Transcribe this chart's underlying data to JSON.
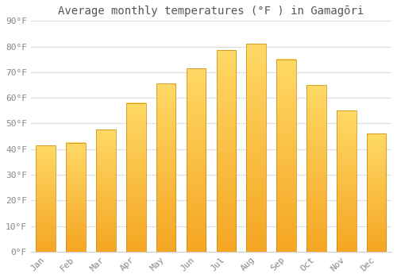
{
  "title": "Average monthly temperatures (°F ) in Gamagōri",
  "months": [
    "Jan",
    "Feb",
    "Mar",
    "Apr",
    "May",
    "Jun",
    "Jul",
    "Aug",
    "Sep",
    "Oct",
    "Nov",
    "Dec"
  ],
  "values": [
    41.5,
    42.5,
    47.5,
    58,
    65.5,
    71.5,
    78.5,
    81,
    75,
    65,
    55,
    46
  ],
  "bar_color_bottom": "#F5A623",
  "bar_color_top": "#FFD966",
  "bar_edge_color": "#C8860A",
  "background_color": "#ffffff",
  "grid_color": "#dddddd",
  "ylim": [
    0,
    90
  ],
  "yticks": [
    0,
    10,
    20,
    30,
    40,
    50,
    60,
    70,
    80,
    90
  ],
  "title_fontsize": 10,
  "tick_fontsize": 8,
  "bar_width": 0.65
}
